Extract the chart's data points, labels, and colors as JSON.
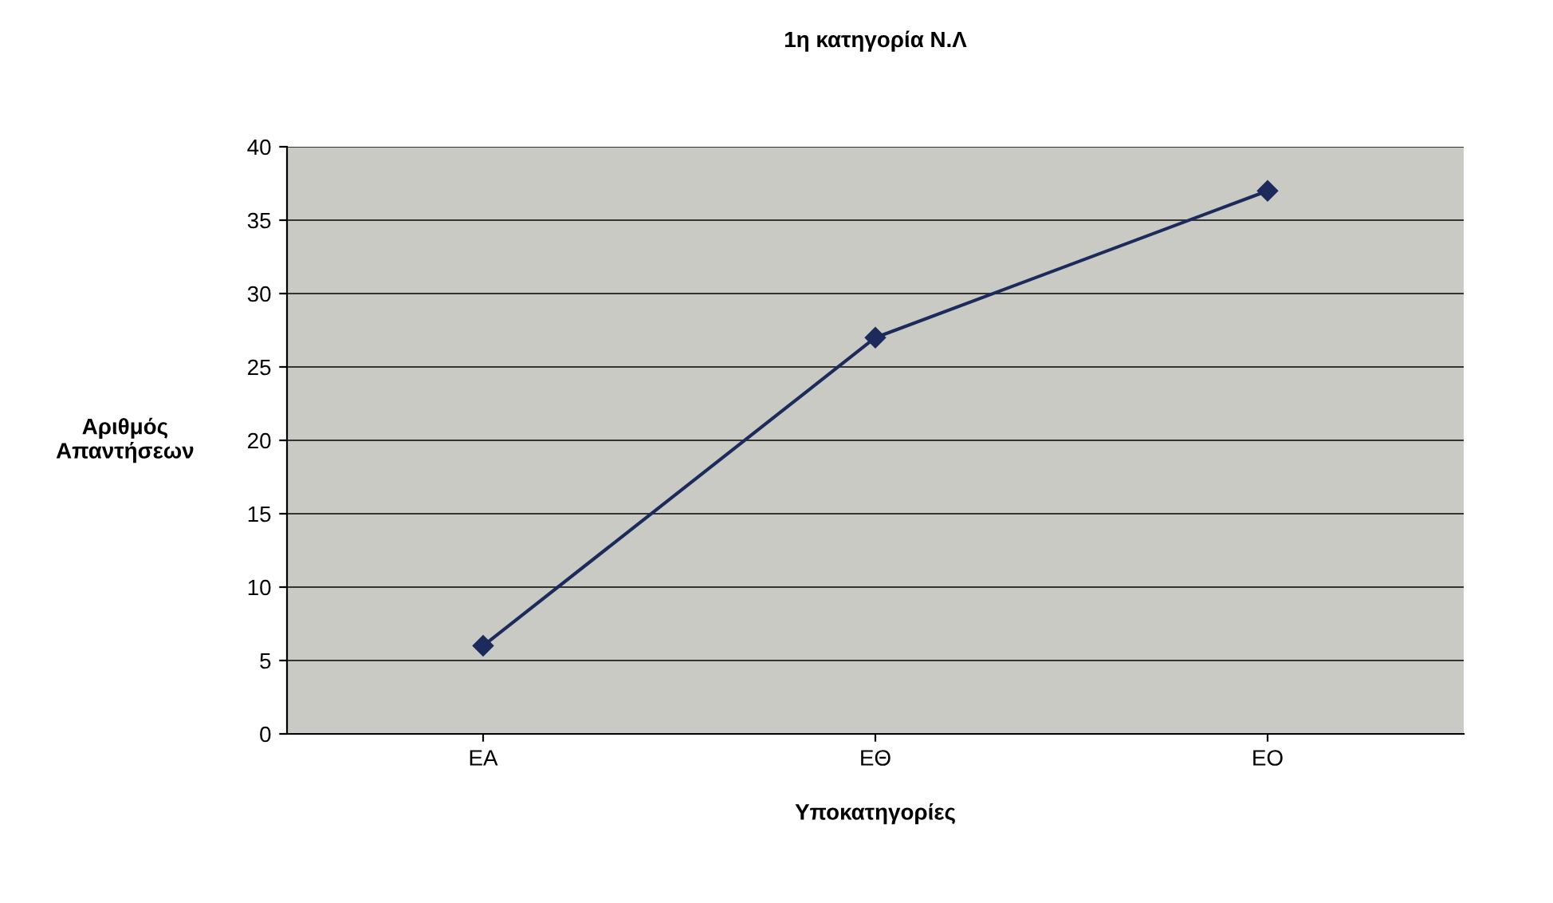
{
  "chart_data": {
    "type": "line",
    "title": "1η κατηγορία Ν.Λ",
    "xlabel": "Υποκατηγορίες",
    "ylabel": "Αριθμός\nΑπαντήσεων",
    "categories": [
      "ΕΑ",
      "ΕΘ",
      "ΕΟ"
    ],
    "series": [
      {
        "color": "#1c2a5c",
        "values": [
          6,
          27,
          37
        ]
      }
    ],
    "ylim": [
      0,
      40
    ],
    "yticks": [
      0,
      5,
      10,
      15,
      20,
      25,
      30,
      35,
      40
    ],
    "grid": "y",
    "marker": "diamond",
    "line_style": "solid"
  }
}
